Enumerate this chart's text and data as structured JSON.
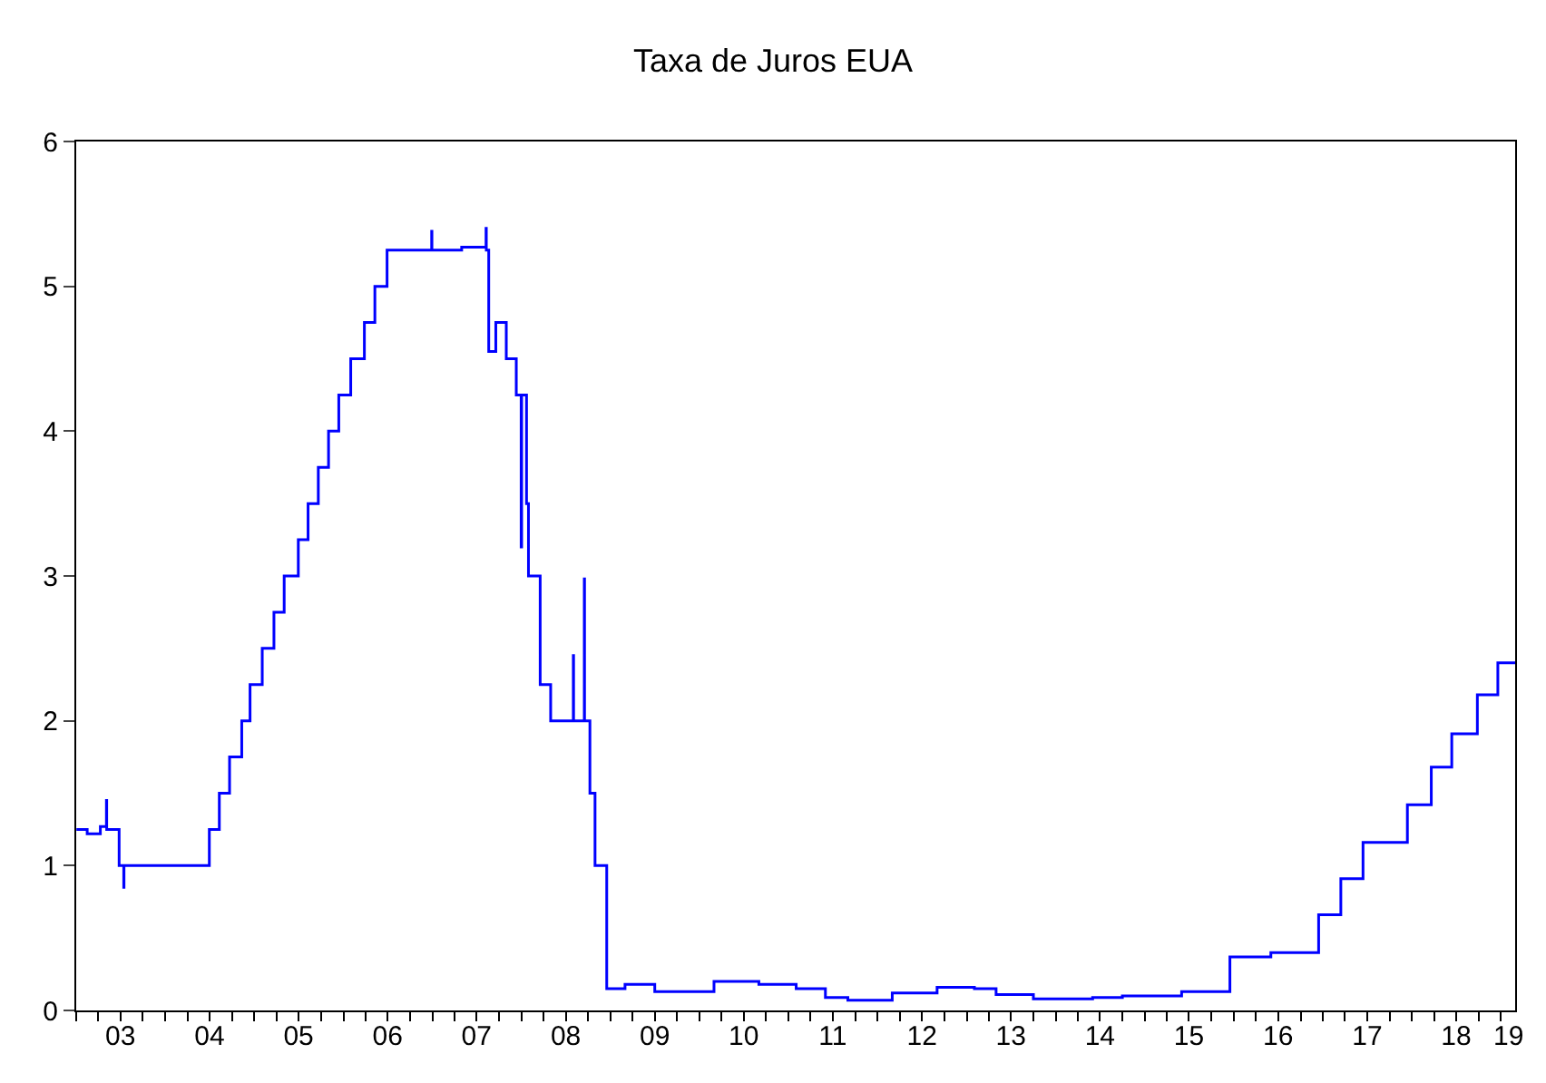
{
  "chart_data": {
    "type": "step",
    "title": "Taxa de Juros EUA",
    "x": [
      "2003-01-02",
      "2003-02-15",
      "2003-04-10",
      "2003-05-05",
      "2003-05-06",
      "2003-06-26",
      "2003-07-15",
      "2003-07-16",
      "2003-09-01",
      "2004-02-10",
      "2004-06-30",
      "2004-08-10",
      "2004-09-21",
      "2004-11-10",
      "2004-12-14",
      "2005-02-02",
      "2005-03-22",
      "2005-05-03",
      "2005-06-30",
      "2005-08-09",
      "2005-09-20",
      "2005-11-01",
      "2005-12-13",
      "2006-01-31",
      "2006-03-28",
      "2006-05-10",
      "2006-06-29",
      "2006-12-29",
      "2006-12-30",
      "2007-05-01",
      "2007-08-09",
      "2007-08-10",
      "2007-08-20",
      "2007-09-18",
      "2007-10-31",
      "2007-12-11",
      "2007-12-31",
      "2008-01-02",
      "2008-01-22",
      "2008-01-30",
      "2008-03-18",
      "2008-04-30",
      "2008-08-01",
      "2008-08-02",
      "2008-09-15",
      "2008-09-16",
      "2008-10-08",
      "2008-10-29",
      "2008-12-16",
      "2009-03-01",
      "2009-07-01",
      "2010-03-01",
      "2010-09-01",
      "2011-02-01",
      "2011-06-01",
      "2011-09-01",
      "2012-03-01",
      "2012-09-01",
      "2013-02-01",
      "2013-05-01",
      "2013-10-01",
      "2014-06-01",
      "2014-10-01",
      "2015-06-01",
      "2015-12-16",
      "2016-06-01",
      "2016-12-14",
      "2017-03-15",
      "2017-06-14",
      "2017-12-13",
      "2018-03-21",
      "2018-06-13",
      "2018-09-26",
      "2018-12-19",
      "2019-02-28"
    ],
    "values": [
      1.25,
      1.22,
      1.27,
      1.45,
      1.25,
      1.0,
      0.85,
      1.0,
      1.0,
      1.0,
      1.25,
      1.5,
      1.75,
      2.0,
      2.25,
      2.5,
      2.75,
      3.0,
      3.25,
      3.5,
      3.75,
      4.0,
      4.25,
      4.5,
      4.75,
      5.0,
      5.25,
      5.38,
      5.25,
      5.27,
      5.4,
      5.25,
      4.55,
      4.75,
      4.5,
      4.25,
      3.2,
      4.25,
      3.5,
      3.0,
      2.25,
      2.0,
      2.45,
      2.0,
      2.98,
      2.0,
      1.5,
      1.0,
      0.15,
      0.18,
      0.13,
      0.2,
      0.18,
      0.15,
      0.09,
      0.07,
      0.12,
      0.16,
      0.15,
      0.11,
      0.08,
      0.09,
      0.1,
      0.13,
      0.37,
      0.4,
      0.66,
      0.91,
      1.16,
      1.42,
      1.68,
      1.91,
      2.18,
      2.4,
      2.4
    ],
    "color": "#0000ff",
    "xlim": [
      "2003-01-01",
      "2019-02-28"
    ],
    "xticks": [
      {
        "value": "2003-07-01",
        "label": "03"
      },
      {
        "value": "2004-07-01",
        "label": "04"
      },
      {
        "value": "2005-07-01",
        "label": "05"
      },
      {
        "value": "2006-07-01",
        "label": "06"
      },
      {
        "value": "2007-07-01",
        "label": "07"
      },
      {
        "value": "2008-07-01",
        "label": "08"
      },
      {
        "value": "2009-07-01",
        "label": "09"
      },
      {
        "value": "2010-07-01",
        "label": "10"
      },
      {
        "value": "2011-07-01",
        "label": "11"
      },
      {
        "value": "2012-07-01",
        "label": "12"
      },
      {
        "value": "2013-07-01",
        "label": "13"
      },
      {
        "value": "2014-07-01",
        "label": "14"
      },
      {
        "value": "2015-07-01",
        "label": "15"
      },
      {
        "value": "2016-07-01",
        "label": "16"
      },
      {
        "value": "2017-07-01",
        "label": "17"
      },
      {
        "value": "2018-07-01",
        "label": "18"
      },
      {
        "value": "2019-02-01",
        "label": "19"
      }
    ],
    "ylim": [
      0,
      6
    ],
    "yticks": [
      0,
      1,
      2,
      3,
      4,
      5,
      6
    ],
    "legend": false
  }
}
